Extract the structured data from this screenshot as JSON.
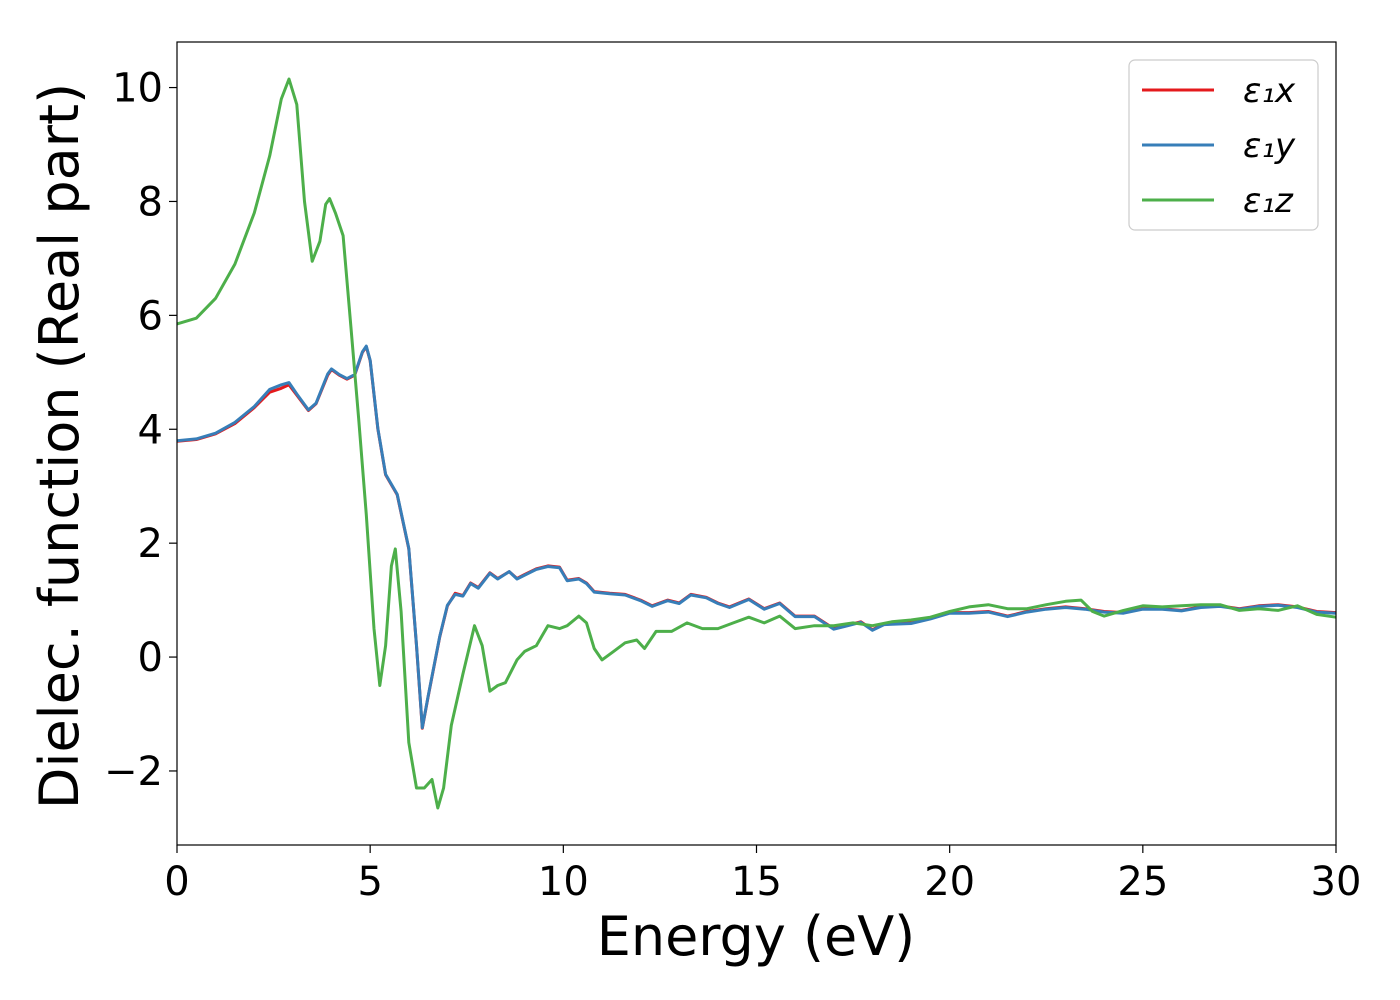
{
  "chart_data": {
    "type": "line",
    "title": "",
    "xlabel": "Energy (eV)",
    "ylabel": "Dielec. function (Real part)",
    "xlim": [
      0,
      30
    ],
    "ylim": [
      -3.3,
      10.8
    ],
    "xticks": [
      0,
      5,
      10,
      15,
      20,
      25,
      30
    ],
    "xtick_labels": [
      "0",
      "5",
      "10",
      "15",
      "20",
      "25",
      "30"
    ],
    "yticks": [
      -2,
      0,
      2,
      4,
      6,
      8,
      10
    ],
    "ytick_labels": [
      "−2",
      "0",
      "2",
      "4",
      "6",
      "8",
      "10"
    ],
    "grid": false,
    "legend_position": "top-right",
    "series": [
      {
        "name": "ε₁x",
        "color": "#e41a1c",
        "points": [
          [
            0,
            3.79
          ],
          [
            0.5,
            3.82
          ],
          [
            1.0,
            3.92
          ],
          [
            1.5,
            4.1
          ],
          [
            2.0,
            4.38
          ],
          [
            2.4,
            4.65
          ],
          [
            2.7,
            4.72
          ],
          [
            2.9,
            4.78
          ],
          [
            3.1,
            4.6
          ],
          [
            3.4,
            4.33
          ],
          [
            3.6,
            4.45
          ],
          [
            3.9,
            4.95
          ],
          [
            4.0,
            5.05
          ],
          [
            4.2,
            4.95
          ],
          [
            4.4,
            4.88
          ],
          [
            4.6,
            4.95
          ],
          [
            4.8,
            5.35
          ],
          [
            4.9,
            5.45
          ],
          [
            5.0,
            5.2
          ],
          [
            5.2,
            4.0
          ],
          [
            5.4,
            3.2
          ],
          [
            5.7,
            2.85
          ],
          [
            6.0,
            1.9
          ],
          [
            6.2,
            0.2
          ],
          [
            6.35,
            -1.25
          ],
          [
            6.5,
            -0.7
          ],
          [
            6.8,
            0.35
          ],
          [
            7.0,
            0.9
          ],
          [
            7.2,
            1.12
          ],
          [
            7.4,
            1.08
          ],
          [
            7.6,
            1.3
          ],
          [
            7.8,
            1.22
          ],
          [
            8.1,
            1.48
          ],
          [
            8.3,
            1.38
          ],
          [
            8.6,
            1.5
          ],
          [
            8.8,
            1.38
          ],
          [
            9.0,
            1.45
          ],
          [
            9.3,
            1.55
          ],
          [
            9.6,
            1.6
          ],
          [
            9.9,
            1.58
          ],
          [
            10.1,
            1.35
          ],
          [
            10.4,
            1.38
          ],
          [
            10.6,
            1.3
          ],
          [
            10.8,
            1.15
          ],
          [
            11.2,
            1.12
          ],
          [
            11.6,
            1.1
          ],
          [
            12.0,
            1.0
          ],
          [
            12.3,
            0.9
          ],
          [
            12.7,
            1.0
          ],
          [
            13.0,
            0.95
          ],
          [
            13.3,
            1.1
          ],
          [
            13.7,
            1.05
          ],
          [
            14.0,
            0.95
          ],
          [
            14.3,
            0.88
          ],
          [
            14.8,
            1.02
          ],
          [
            15.2,
            0.85
          ],
          [
            15.6,
            0.95
          ],
          [
            16.0,
            0.72
          ],
          [
            16.5,
            0.72
          ],
          [
            17.0,
            0.5
          ],
          [
            17.3,
            0.55
          ],
          [
            17.7,
            0.62
          ],
          [
            18.0,
            0.48
          ],
          [
            18.3,
            0.58
          ],
          [
            19.0,
            0.6
          ],
          [
            19.5,
            0.68
          ],
          [
            20.0,
            0.78
          ],
          [
            20.5,
            0.78
          ],
          [
            21.0,
            0.8
          ],
          [
            21.5,
            0.72
          ],
          [
            22.0,
            0.8
          ],
          [
            22.5,
            0.85
          ],
          [
            23.0,
            0.88
          ],
          [
            23.5,
            0.85
          ],
          [
            24.0,
            0.8
          ],
          [
            24.5,
            0.78
          ],
          [
            25.0,
            0.85
          ],
          [
            25.5,
            0.85
          ],
          [
            26.0,
            0.82
          ],
          [
            26.5,
            0.88
          ],
          [
            27.0,
            0.9
          ],
          [
            27.5,
            0.85
          ],
          [
            28.0,
            0.9
          ],
          [
            28.5,
            0.92
          ],
          [
            29.0,
            0.88
          ],
          [
            29.5,
            0.8
          ],
          [
            30.0,
            0.78
          ]
        ]
      },
      {
        "name": "ε₁y",
        "color": "#377eb8",
        "points": [
          [
            0,
            3.8
          ],
          [
            0.5,
            3.83
          ],
          [
            1.0,
            3.93
          ],
          [
            1.5,
            4.12
          ],
          [
            2.0,
            4.4
          ],
          [
            2.4,
            4.7
          ],
          [
            2.7,
            4.78
          ],
          [
            2.9,
            4.82
          ],
          [
            3.1,
            4.62
          ],
          [
            3.4,
            4.34
          ],
          [
            3.6,
            4.46
          ],
          [
            3.9,
            4.97
          ],
          [
            4.0,
            5.06
          ],
          [
            4.2,
            4.96
          ],
          [
            4.4,
            4.89
          ],
          [
            4.6,
            4.96
          ],
          [
            4.8,
            5.36
          ],
          [
            4.9,
            5.46
          ],
          [
            5.0,
            5.21
          ],
          [
            5.2,
            4.01
          ],
          [
            5.4,
            3.21
          ],
          [
            5.7,
            2.86
          ],
          [
            6.0,
            1.91
          ],
          [
            6.2,
            0.21
          ],
          [
            6.35,
            -1.24
          ],
          [
            6.5,
            -0.69
          ],
          [
            6.8,
            0.36
          ],
          [
            7.0,
            0.91
          ],
          [
            7.2,
            1.1
          ],
          [
            7.4,
            1.07
          ],
          [
            7.6,
            1.29
          ],
          [
            7.8,
            1.21
          ],
          [
            8.1,
            1.47
          ],
          [
            8.3,
            1.37
          ],
          [
            8.6,
            1.5
          ],
          [
            8.8,
            1.37
          ],
          [
            9.0,
            1.44
          ],
          [
            9.3,
            1.54
          ],
          [
            9.6,
            1.59
          ],
          [
            9.9,
            1.57
          ],
          [
            10.1,
            1.34
          ],
          [
            10.4,
            1.37
          ],
          [
            10.6,
            1.29
          ],
          [
            10.8,
            1.14
          ],
          [
            11.2,
            1.11
          ],
          [
            11.6,
            1.09
          ],
          [
            12.0,
            0.99
          ],
          [
            12.3,
            0.89
          ],
          [
            12.7,
            0.99
          ],
          [
            13.0,
            0.94
          ],
          [
            13.3,
            1.09
          ],
          [
            13.7,
            1.04
          ],
          [
            14.0,
            0.94
          ],
          [
            14.3,
            0.87
          ],
          [
            14.8,
            1.01
          ],
          [
            15.2,
            0.84
          ],
          [
            15.6,
            0.94
          ],
          [
            16.0,
            0.71
          ],
          [
            16.5,
            0.71
          ],
          [
            17.0,
            0.49
          ],
          [
            17.3,
            0.54
          ],
          [
            17.7,
            0.61
          ],
          [
            18.0,
            0.47
          ],
          [
            18.3,
            0.57
          ],
          [
            19.0,
            0.59
          ],
          [
            19.5,
            0.67
          ],
          [
            20.0,
            0.77
          ],
          [
            20.5,
            0.77
          ],
          [
            21.0,
            0.79
          ],
          [
            21.5,
            0.71
          ],
          [
            22.0,
            0.79
          ],
          [
            22.5,
            0.84
          ],
          [
            23.0,
            0.87
          ],
          [
            23.5,
            0.84
          ],
          [
            24.0,
            0.79
          ],
          [
            24.5,
            0.77
          ],
          [
            25.0,
            0.84
          ],
          [
            25.5,
            0.84
          ],
          [
            26.0,
            0.81
          ],
          [
            26.5,
            0.87
          ],
          [
            27.0,
            0.89
          ],
          [
            27.5,
            0.84
          ],
          [
            28.0,
            0.89
          ],
          [
            28.5,
            0.91
          ],
          [
            29.0,
            0.87
          ],
          [
            29.5,
            0.79
          ],
          [
            30.0,
            0.77
          ]
        ]
      },
      {
        "name": "ε₁z",
        "color": "#4daf4a",
        "points": [
          [
            0,
            5.85
          ],
          [
            0.5,
            5.95
          ],
          [
            1.0,
            6.3
          ],
          [
            1.5,
            6.9
          ],
          [
            2.0,
            7.8
          ],
          [
            2.4,
            8.8
          ],
          [
            2.7,
            9.8
          ],
          [
            2.9,
            10.15
          ],
          [
            3.1,
            9.7
          ],
          [
            3.3,
            8.0
          ],
          [
            3.5,
            6.95
          ],
          [
            3.7,
            7.3
          ],
          [
            3.85,
            7.95
          ],
          [
            3.95,
            8.05
          ],
          [
            4.1,
            7.8
          ],
          [
            4.3,
            7.4
          ],
          [
            4.5,
            5.8
          ],
          [
            4.7,
            4.2
          ],
          [
            4.9,
            2.5
          ],
          [
            5.1,
            0.5
          ],
          [
            5.25,
            -0.5
          ],
          [
            5.4,
            0.2
          ],
          [
            5.55,
            1.6
          ],
          [
            5.65,
            1.9
          ],
          [
            5.8,
            0.8
          ],
          [
            6.0,
            -1.5
          ],
          [
            6.2,
            -2.3
          ],
          [
            6.4,
            -2.3
          ],
          [
            6.6,
            -2.15
          ],
          [
            6.75,
            -2.65
          ],
          [
            6.9,
            -2.3
          ],
          [
            7.1,
            -1.2
          ],
          [
            7.4,
            -0.3
          ],
          [
            7.7,
            0.55
          ],
          [
            7.9,
            0.2
          ],
          [
            8.1,
            -0.6
          ],
          [
            8.3,
            -0.5
          ],
          [
            8.5,
            -0.45
          ],
          [
            8.8,
            -0.05
          ],
          [
            9.0,
            0.1
          ],
          [
            9.3,
            0.2
          ],
          [
            9.6,
            0.55
          ],
          [
            9.9,
            0.5
          ],
          [
            10.1,
            0.55
          ],
          [
            10.4,
            0.72
          ],
          [
            10.6,
            0.6
          ],
          [
            10.8,
            0.15
          ],
          [
            11.0,
            -0.05
          ],
          [
            11.3,
            0.1
          ],
          [
            11.6,
            0.25
          ],
          [
            11.9,
            0.3
          ],
          [
            12.1,
            0.15
          ],
          [
            12.4,
            0.45
          ],
          [
            12.8,
            0.45
          ],
          [
            13.2,
            0.6
          ],
          [
            13.6,
            0.5
          ],
          [
            14.0,
            0.5
          ],
          [
            14.4,
            0.6
          ],
          [
            14.8,
            0.7
          ],
          [
            15.2,
            0.6
          ],
          [
            15.6,
            0.72
          ],
          [
            16.0,
            0.5
          ],
          [
            16.5,
            0.55
          ],
          [
            17.0,
            0.55
          ],
          [
            17.5,
            0.6
          ],
          [
            18.0,
            0.55
          ],
          [
            18.5,
            0.62
          ],
          [
            19.0,
            0.65
          ],
          [
            19.5,
            0.7
          ],
          [
            20.0,
            0.8
          ],
          [
            20.5,
            0.88
          ],
          [
            21.0,
            0.92
          ],
          [
            21.5,
            0.85
          ],
          [
            22.0,
            0.85
          ],
          [
            22.5,
            0.92
          ],
          [
            23.0,
            0.98
          ],
          [
            23.4,
            1.0
          ],
          [
            23.7,
            0.8
          ],
          [
            24.0,
            0.72
          ],
          [
            24.5,
            0.82
          ],
          [
            25.0,
            0.9
          ],
          [
            25.5,
            0.88
          ],
          [
            26.0,
            0.9
          ],
          [
            26.5,
            0.92
          ],
          [
            27.0,
            0.92
          ],
          [
            27.5,
            0.82
          ],
          [
            28.0,
            0.85
          ],
          [
            28.5,
            0.82
          ],
          [
            29.0,
            0.9
          ],
          [
            29.5,
            0.75
          ],
          [
            30.0,
            0.7
          ]
        ]
      }
    ]
  }
}
